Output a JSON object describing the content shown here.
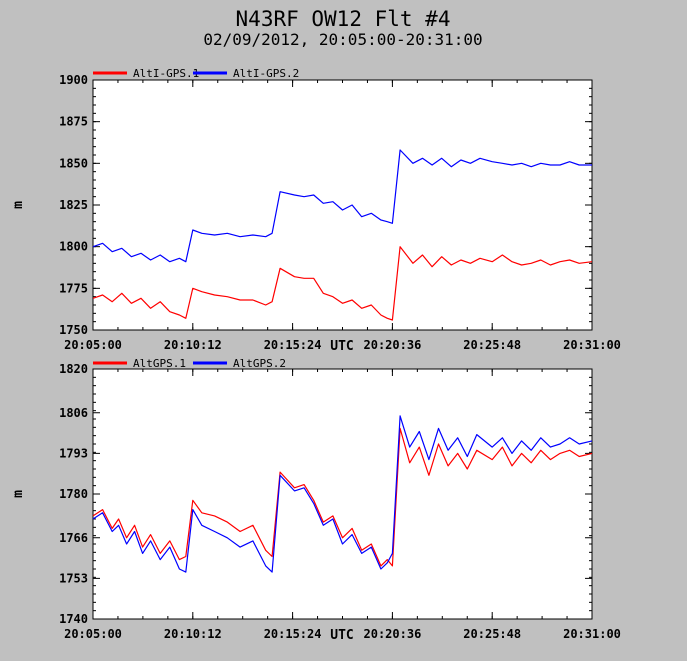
{
  "header": {
    "title": "N43RF OW12 Flt #4",
    "subtitle": "02/09/2012, 20:05:00-20:31:00"
  },
  "colors": {
    "series1": "#ff0000",
    "series2": "#0000ff",
    "plot_bg": "#ffffff",
    "page_bg": "#c0c0c0"
  },
  "chart_data": [
    {
      "type": "line",
      "xlabel": "UTC",
      "ylabel": "m",
      "xlim": [
        "20:05:00",
        "20:31:00"
      ],
      "xticks": [
        "20:05:00",
        "20:10:12",
        "20:15:24",
        "20:20:36",
        "20:25:48",
        "20:31:00"
      ],
      "ylim": [
        1750,
        1900
      ],
      "yticks": [
        1750,
        1775,
        1800,
        1825,
        1850,
        1875,
        1900
      ],
      "legend": "top-left",
      "grid": false,
      "series": [
        {
          "name": "AltI-GPS.1",
          "color": "#ff0000",
          "x": [
            "20:05:00",
            "20:05:30",
            "20:06:00",
            "20:06:30",
            "20:07:00",
            "20:07:30",
            "20:08:00",
            "20:08:30",
            "20:09:00",
            "20:09:30",
            "20:09:50",
            "20:10:12",
            "20:10:40",
            "20:11:20",
            "20:12:00",
            "20:12:40",
            "20:13:20",
            "20:14:00",
            "20:14:20",
            "20:14:45",
            "20:15:30",
            "20:16:00",
            "20:16:30",
            "20:17:00",
            "20:17:30",
            "20:18:00",
            "20:18:30",
            "20:19:00",
            "20:19:30",
            "20:20:00",
            "20:20:20",
            "20:20:36",
            "20:21:00",
            "20:21:40",
            "20:22:10",
            "20:22:40",
            "20:23:10",
            "20:23:40",
            "20:24:10",
            "20:24:40",
            "20:25:10",
            "20:25:48",
            "20:26:20",
            "20:26:50",
            "20:27:20",
            "20:27:50",
            "20:28:20",
            "20:28:50",
            "20:29:20",
            "20:29:50",
            "20:30:20",
            "20:31:00"
          ],
          "values": [
            1769,
            1771,
            1767,
            1772,
            1766,
            1769,
            1763,
            1767,
            1761,
            1759,
            1757,
            1775,
            1773,
            1771,
            1770,
            1768,
            1768,
            1765,
            1767,
            1787,
            1782,
            1781,
            1781,
            1772,
            1770,
            1766,
            1768,
            1763,
            1765,
            1759,
            1757,
            1756,
            1800,
            1790,
            1795,
            1788,
            1794,
            1789,
            1792,
            1790,
            1793,
            1791,
            1795,
            1791,
            1789,
            1790,
            1792,
            1789,
            1791,
            1792,
            1790,
            1791
          ]
        },
        {
          "name": "AltI-GPS.2",
          "color": "#0000ff",
          "x": [
            "20:05:00",
            "20:05:30",
            "20:06:00",
            "20:06:30",
            "20:07:00",
            "20:07:30",
            "20:08:00",
            "20:08:30",
            "20:09:00",
            "20:09:30",
            "20:09:50",
            "20:10:12",
            "20:10:40",
            "20:11:20",
            "20:12:00",
            "20:12:40",
            "20:13:20",
            "20:14:00",
            "20:14:20",
            "20:14:45",
            "20:15:30",
            "20:16:00",
            "20:16:30",
            "20:17:00",
            "20:17:30",
            "20:18:00",
            "20:18:30",
            "20:19:00",
            "20:19:30",
            "20:20:00",
            "20:20:20",
            "20:20:36",
            "20:21:00",
            "20:21:40",
            "20:22:10",
            "20:22:40",
            "20:23:10",
            "20:23:40",
            "20:24:10",
            "20:24:40",
            "20:25:10",
            "20:25:48",
            "20:26:20",
            "20:26:50",
            "20:27:20",
            "20:27:50",
            "20:28:20",
            "20:28:50",
            "20:29:20",
            "20:29:50",
            "20:30:20",
            "20:31:00"
          ],
          "values": [
            1800,
            1802,
            1797,
            1799,
            1794,
            1796,
            1792,
            1795,
            1791,
            1793,
            1791,
            1810,
            1808,
            1807,
            1808,
            1806,
            1807,
            1806,
            1808,
            1833,
            1831,
            1830,
            1831,
            1826,
            1827,
            1822,
            1825,
            1818,
            1820,
            1816,
            1815,
            1814,
            1858,
            1850,
            1853,
            1849,
            1853,
            1848,
            1852,
            1850,
            1853,
            1851,
            1850,
            1849,
            1850,
            1848,
            1850,
            1849,
            1849,
            1851,
            1849,
            1849
          ]
        }
      ]
    },
    {
      "type": "line",
      "xlabel": "UTC",
      "ylabel": "m",
      "xlim": [
        "20:05:00",
        "20:31:00"
      ],
      "xticks": [
        "20:05:00",
        "20:10:12",
        "20:15:24",
        "20:20:36",
        "20:25:48",
        "20:31:00"
      ],
      "ylim": [
        1740,
        1820
      ],
      "yticks": [
        1740,
        1753,
        1766,
        1780,
        1793,
        1806,
        1820
      ],
      "legend": "top-left",
      "grid": false,
      "series": [
        {
          "name": "AltGPS.1",
          "color": "#ff0000",
          "x": [
            "20:05:00",
            "20:05:30",
            "20:06:00",
            "20:06:20",
            "20:06:45",
            "20:07:10",
            "20:07:35",
            "20:08:00",
            "20:08:30",
            "20:09:00",
            "20:09:30",
            "20:09:50",
            "20:10:12",
            "20:10:40",
            "20:11:20",
            "20:12:00",
            "20:12:40",
            "20:13:20",
            "20:14:00",
            "20:14:20",
            "20:14:45",
            "20:15:30",
            "20:16:00",
            "20:16:30",
            "20:17:00",
            "20:17:30",
            "20:18:00",
            "20:18:30",
            "20:19:00",
            "20:19:30",
            "20:20:00",
            "20:20:20",
            "20:20:36",
            "20:21:00",
            "20:21:30",
            "20:22:00",
            "20:22:30",
            "20:23:00",
            "20:23:30",
            "20:24:00",
            "20:24:30",
            "20:25:00",
            "20:25:48",
            "20:26:20",
            "20:26:50",
            "20:27:20",
            "20:27:50",
            "20:28:20",
            "20:28:50",
            "20:29:20",
            "20:29:50",
            "20:30:20",
            "20:31:00"
          ],
          "values": [
            1773,
            1775,
            1769,
            1772,
            1766,
            1770,
            1763,
            1767,
            1761,
            1765,
            1759,
            1760,
            1778,
            1774,
            1773,
            1771,
            1768,
            1770,
            1762,
            1760,
            1787,
            1782,
            1783,
            1778,
            1771,
            1773,
            1766,
            1769,
            1762,
            1764,
            1757,
            1759,
            1757,
            1801,
            1790,
            1795,
            1786,
            1796,
            1789,
            1793,
            1788,
            1794,
            1791,
            1795,
            1789,
            1793,
            1790,
            1794,
            1791,
            1793,
            1794,
            1792,
            1793
          ]
        },
        {
          "name": "AltGPS.2",
          "color": "#0000ff",
          "x": [
            "20:05:00",
            "20:05:30",
            "20:06:00",
            "20:06:20",
            "20:06:45",
            "20:07:10",
            "20:07:35",
            "20:08:00",
            "20:08:30",
            "20:09:00",
            "20:09:30",
            "20:09:50",
            "20:10:12",
            "20:10:40",
            "20:11:20",
            "20:12:00",
            "20:12:40",
            "20:13:20",
            "20:14:00",
            "20:14:20",
            "20:14:45",
            "20:15:30",
            "20:16:00",
            "20:16:30",
            "20:17:00",
            "20:17:30",
            "20:18:00",
            "20:18:30",
            "20:19:00",
            "20:19:30",
            "20:20:00",
            "20:20:20",
            "20:20:36",
            "20:21:00",
            "20:21:30",
            "20:22:00",
            "20:22:30",
            "20:23:00",
            "20:23:30",
            "20:24:00",
            "20:24:30",
            "20:25:00",
            "20:25:48",
            "20:26:20",
            "20:26:50",
            "20:27:20",
            "20:27:50",
            "20:28:20",
            "20:28:50",
            "20:29:20",
            "20:29:50",
            "20:30:20",
            "20:31:00"
          ],
          "values": [
            1772,
            1774,
            1768,
            1770,
            1764,
            1768,
            1761,
            1765,
            1759,
            1763,
            1756,
            1755,
            1775,
            1770,
            1768,
            1766,
            1763,
            1765,
            1757,
            1755,
            1786,
            1781,
            1782,
            1777,
            1770,
            1772,
            1764,
            1767,
            1761,
            1763,
            1756,
            1758,
            1761,
            1805,
            1795,
            1800,
            1791,
            1801,
            1794,
            1798,
            1792,
            1799,
            1795,
            1798,
            1793,
            1797,
            1794,
            1798,
            1795,
            1796,
            1798,
            1796,
            1797
          ]
        }
      ]
    }
  ]
}
